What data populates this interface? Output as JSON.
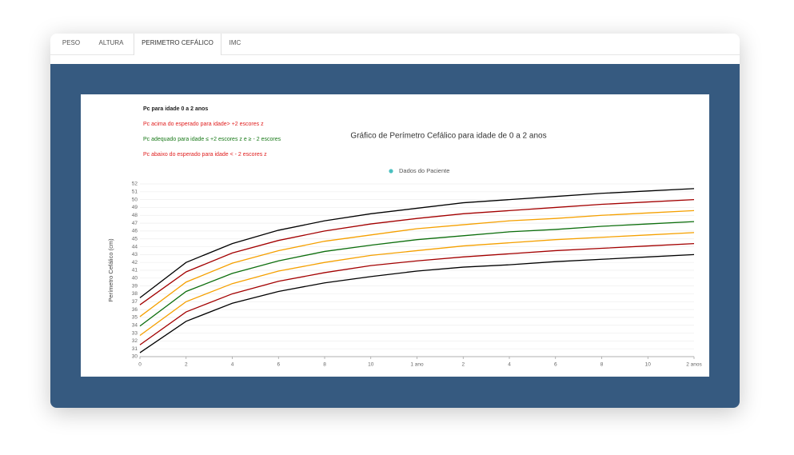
{
  "tabs": [
    "PESO",
    "ALTURA",
    "PERIMETRO CEFÁLICO",
    "IMC"
  ],
  "chart_data": {
    "type": "line",
    "title": "Gráfico de Perímetro Cefálico para idade de 0 a 2 anos",
    "notes": [
      {
        "text": "Pc para idade 0 a 2 anos",
        "color": "#222222"
      },
      {
        "text": "Pc acima do esperado para idade> +2 escores z",
        "color": "#e02020"
      },
      {
        "text": "Pc adequado para idade ≤ +2 escores z e ≥ - 2 escores",
        "color": "#1a7a1a"
      },
      {
        "text": "Pc abaixo do esperado para idade < - 2 escores z",
        "color": "#e02020"
      }
    ],
    "legend": {
      "label": "Dados do Paciente",
      "color": "#4bc0c0"
    },
    "ylabel": "Perímetro Cefálico (cm)",
    "x": [
      0,
      2,
      4,
      6,
      8,
      10,
      12,
      14,
      16,
      18,
      20,
      22,
      24
    ],
    "xlim": [
      0,
      24
    ],
    "xticks": [
      0,
      2,
      4,
      6,
      8,
      10,
      {
        "value": 12,
        "label": "1 ano"
      },
      {
        "value": 14,
        "label": "2"
      },
      {
        "value": 16,
        "label": "4"
      },
      {
        "value": 18,
        "label": "6"
      },
      {
        "value": 20,
        "label": "8"
      },
      {
        "value": 22,
        "label": "10"
      },
      {
        "value": 24,
        "label": "2 anos"
      }
    ],
    "ylim": [
      30,
      52
    ],
    "yticks": [
      30,
      31,
      32,
      33,
      34,
      35,
      36,
      37,
      38,
      39,
      40,
      41,
      42,
      43,
      44,
      45,
      46,
      47,
      48,
      49,
      50,
      51,
      52
    ],
    "grid": true,
    "series": [
      {
        "color": "#000000",
        "values": [
          37.5,
          42.0,
          44.4,
          46.1,
          47.3,
          48.2,
          48.9,
          49.6,
          50.0,
          50.4,
          50.8,
          51.1,
          51.4
        ]
      },
      {
        "color": "#a30000",
        "values": [
          36.6,
          40.8,
          43.2,
          44.8,
          46.0,
          46.9,
          47.6,
          48.2,
          48.6,
          49.0,
          49.4,
          49.7,
          50.0
        ]
      },
      {
        "color": "#f5a000",
        "values": [
          35.1,
          39.5,
          41.9,
          43.5,
          44.7,
          45.5,
          46.3,
          46.8,
          47.3,
          47.6,
          48.0,
          48.3,
          48.6
        ]
      },
      {
        "color": "#0d6e0d",
        "values": [
          33.9,
          38.3,
          40.6,
          42.2,
          43.4,
          44.2,
          44.9,
          45.4,
          45.9,
          46.2,
          46.6,
          46.9,
          47.2
        ]
      },
      {
        "color": "#f5a000",
        "values": [
          32.7,
          37.0,
          39.3,
          40.9,
          42.0,
          42.9,
          43.5,
          44.1,
          44.5,
          44.9,
          45.2,
          45.5,
          45.8
        ]
      },
      {
        "color": "#a30000",
        "values": [
          31.5,
          35.7,
          38.0,
          39.6,
          40.7,
          41.6,
          42.2,
          42.7,
          43.1,
          43.5,
          43.8,
          44.1,
          44.4
        ]
      },
      {
        "color": "#000000",
        "values": [
          30.5,
          34.5,
          36.8,
          38.3,
          39.4,
          40.2,
          40.9,
          41.4,
          41.7,
          42.1,
          42.4,
          42.7,
          43.0
        ]
      }
    ]
  }
}
